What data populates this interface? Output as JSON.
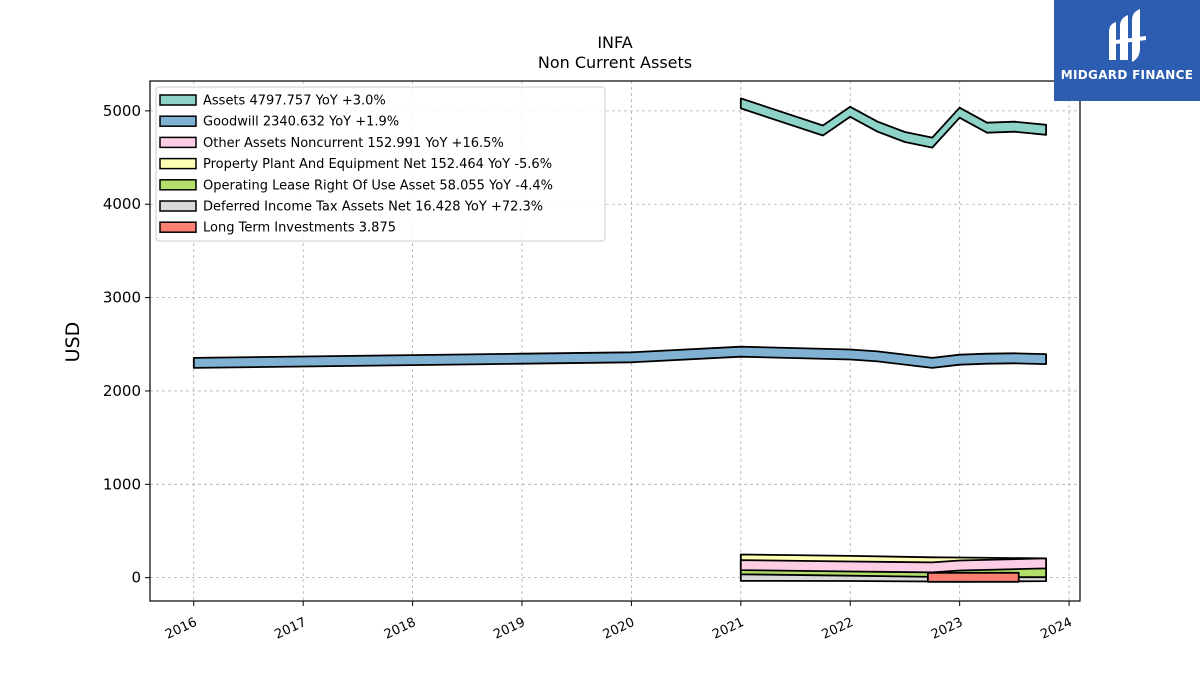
{
  "chart_data": {
    "type": "area",
    "title": "INFA",
    "subtitle": "Non Current  Assets",
    "ylabel": "USD",
    "xlabel": "",
    "xlim": [
      2015.6,
      2024.1
    ],
    "ylim": [
      -250,
      5320
    ],
    "x_ticks": [
      2016,
      2017,
      2018,
      2019,
      2020,
      2021,
      2022,
      2023,
      2024
    ],
    "x_tick_labels": [
      "2016",
      "2017",
      "2018",
      "2019",
      "2020",
      "2021",
      "2022",
      "2023",
      "2024"
    ],
    "y_ticks": [
      0,
      1000,
      2000,
      3000,
      4000,
      5000
    ],
    "y_tick_labels": [
      "0",
      "1000",
      "2000",
      "3000",
      "4000",
      "5000"
    ],
    "grid": true,
    "legend_position": "top-left",
    "series": [
      {
        "name": "Assets",
        "legend": "Assets  4797.757 YoY +3.0%",
        "color": "#8dd3c7",
        "x": [
          2021.0,
          2021.75,
          2022.0,
          2022.25,
          2022.5,
          2022.75,
          2023.0,
          2023.25,
          2023.5,
          2023.79
        ],
        "values": [
          5080,
          4790,
          4990,
          4830,
          4720,
          4660,
          4980,
          4820,
          4830,
          4797.757
        ]
      },
      {
        "name": "Goodwill",
        "legend": "Goodwill  2340.632 YoY +1.9%",
        "color": "#80b1d3",
        "x": [
          2016.0,
          2017.0,
          2018.0,
          2019.0,
          2020.0,
          2021.0,
          2022.0,
          2022.25,
          2022.75,
          2023.0,
          2023.25,
          2023.5,
          2023.79
        ],
        "values": [
          2300,
          2315,
          2330,
          2345,
          2360,
          2420,
          2390,
          2370,
          2300,
          2335,
          2345,
          2350,
          2340.632
        ]
      },
      {
        "name": "Other Assets Noncurrent",
        "legend": "Other Assets Noncurrent  152.991 YoY +16.5%",
        "color": "#fccde5",
        "x": [
          2021.0,
          2022.0,
          2022.75,
          2023.0,
          2023.79
        ],
        "values": [
          135,
          120,
          110,
          130,
          152.991
        ]
      },
      {
        "name": "Property Plant And Equipment Net",
        "legend": "Property Plant And Equipment Net  152.464 YoY -5.6%",
        "color": "#ffffb3",
        "x": [
          2021.0,
          2022.0,
          2022.75,
          2023.0,
          2023.79
        ],
        "values": [
          195,
          180,
          165,
          162,
          152.464
        ]
      },
      {
        "name": "Operating Lease Right Of Use Asset",
        "legend": "Operating Lease Right Of Use Asset  58.055 YoY -4.4%",
        "color": "#b3de69",
        "x": [
          2021.0,
          2022.0,
          2022.75,
          2023.0,
          2023.79
        ],
        "values": [
          90,
          75,
          62,
          60,
          58.055
        ]
      },
      {
        "name": "Deferred Income Tax Assets Net",
        "legend": "Deferred Income Tax Assets Net  16.428 YoY +72.3%",
        "color": "#d9d9d9",
        "x": [
          2021.0,
          2022.0,
          2022.75,
          2023.0,
          2023.79
        ],
        "values": [
          20,
          18,
          12,
          10,
          16.428
        ]
      },
      {
        "name": "Long Term Investments",
        "legend": "Long Term Investments  3.875",
        "color": "#fb8072",
        "x": [
          2022.71,
          2023.54
        ],
        "values": [
          3.875,
          3.875
        ]
      }
    ]
  },
  "logo": {
    "text": "MIDGARD FINANCE",
    "bg_color": "#2d5db0"
  }
}
